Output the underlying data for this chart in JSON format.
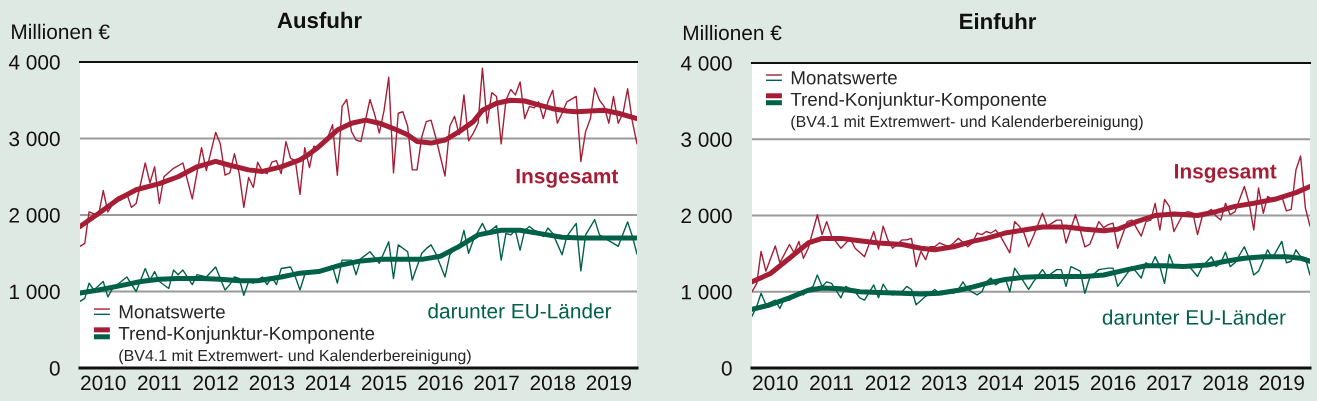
{
  "chart_data": [
    {
      "type": "line",
      "title": "Ausfuhr",
      "ylabel": "Millionen €",
      "xlim": [
        "2010-01",
        "2019-12"
      ],
      "ylim": [
        0,
        4000
      ],
      "yticks": [
        0,
        {
          "value": 1000,
          "label": "1 000"
        },
        {
          "value": 2000,
          "label": "2 000"
        },
        {
          "value": 3000,
          "label": "3 000"
        },
        {
          "value": 4000,
          "label": "4 000"
        }
      ],
      "xticks": [
        {
          "value": "2010-06",
          "label": "2010"
        },
        {
          "value": "2011-06",
          "label": "2011"
        },
        {
          "value": "2012-06",
          "label": "2012"
        },
        {
          "value": "2013-06",
          "label": "2013"
        },
        {
          "value": "2014-06",
          "label": "2014"
        },
        {
          "value": "2015-06",
          "label": "2015"
        },
        {
          "value": "2016-06",
          "label": "2016"
        },
        {
          "value": "2017-06",
          "label": "2017"
        },
        {
          "value": "2018-06",
          "label": "2018"
        },
        {
          "value": "2019-06",
          "label": "2019"
        }
      ],
      "grid": "y",
      "legend": "bottom left",
      "series": [
        {
          "name": "Monatswerte",
          "color": "#a51e36",
          "x": [
            "2010-01",
            "2010-02",
            "2010-03",
            "2010-05",
            "2010-06",
            "2010-07",
            "2010-09",
            "2010-11",
            "2010-12",
            "2011-01",
            "2011-03",
            "2011-04",
            "2011-05",
            "2011-06",
            "2011-07",
            "2011-09",
            "2011-11",
            "2012-01",
            "2012-03",
            "2012-04",
            "2012-06",
            "2012-07",
            "2012-08",
            "2012-09",
            "2012-10",
            "2012-11",
            "2012-12",
            "2013-01",
            "2013-02",
            "2013-03",
            "2013-04",
            "2013-05",
            "2013-06",
            "2013-07",
            "2013-08",
            "2013-09",
            "2013-10",
            "2013-11",
            "2013-12",
            "2014-01",
            "2014-02",
            "2014-03",
            "2014-04",
            "2014-05",
            "2014-06",
            "2014-07",
            "2014-08",
            "2014-09",
            "2014-10",
            "2014-11",
            "2014-12",
            "2015-01",
            "2015-03",
            "2015-04",
            "2015-05",
            "2015-06",
            "2015-07",
            "2015-08",
            "2015-09",
            "2015-10",
            "2015-11",
            "2015-12",
            "2016-01",
            "2016-02",
            "2016-03",
            "2016-04",
            "2016-05",
            "2016-07",
            "2016-08",
            "2016-09",
            "2016-10",
            "2016-11",
            "2016-12",
            "2017-01",
            "2017-02",
            "2017-03",
            "2017-04",
            "2017-05",
            "2017-06",
            "2017-07",
            "2017-08",
            "2017-09",
            "2017-10",
            "2017-11",
            "2017-12",
            "2018-01",
            "2018-02",
            "2018-03",
            "2018-04",
            "2018-05",
            "2018-06",
            "2018-07",
            "2018-08",
            "2018-09",
            "2018-11",
            "2018-12",
            "2019-01",
            "2019-02",
            "2019-03",
            "2019-04",
            "2019-05",
            "2019-06",
            "2019-07",
            "2019-08",
            "2019-09",
            "2019-10",
            "2019-11",
            "2019-12"
          ],
          "values": [
            1590,
            1630,
            2040,
            1990,
            2320,
            2040,
            2230,
            2280,
            2100,
            2150,
            2680,
            2420,
            2630,
            2150,
            2500,
            2610,
            2680,
            2210,
            2880,
            2580,
            3080,
            2930,
            2520,
            2550,
            2800,
            2540,
            2100,
            2490,
            2360,
            2690,
            2570,
            2540,
            2690,
            2710,
            2540,
            2960,
            2740,
            2710,
            2270,
            2880,
            2620,
            2900,
            2880,
            2970,
            3020,
            3180,
            2520,
            3420,
            3510,
            3090,
            2980,
            2960,
            3510,
            3310,
            3070,
            3370,
            3800,
            2550,
            3330,
            3350,
            3160,
            2590,
            2590,
            3020,
            3220,
            3240,
            3020,
            2510,
            3160,
            3290,
            3050,
            3570,
            2970,
            3070,
            3200,
            3920,
            3200,
            3600,
            3550,
            2930,
            3500,
            3640,
            3570,
            3740,
            3260,
            3420,
            3400,
            3480,
            3260,
            3480,
            3630,
            3200,
            3330,
            3480,
            3550,
            2700,
            3090,
            3260,
            3660,
            3500,
            3420,
            3200,
            3550,
            3200,
            3330,
            3650,
            3220,
            2930
          ]
        },
        {
          "color": "#006048",
          "x": [
            "2010-01",
            "2010-02",
            "2010-03",
            "2010-04",
            "2010-06",
            "2010-07",
            "2010-08",
            "2010-11",
            "2011-01",
            "2011-03",
            "2011-04",
            "2011-05",
            "2011-06",
            "2011-08",
            "2011-09",
            "2011-10",
            "2011-11",
            "2012-01",
            "2012-02",
            "2012-04",
            "2012-06",
            "2012-07",
            "2012-08",
            "2012-09",
            "2012-10",
            "2012-11",
            "2012-12",
            "2013-01",
            "2013-02",
            "2013-03",
            "2013-04",
            "2013-05",
            "2013-06",
            "2013-07",
            "2013-08",
            "2013-10",
            "2013-11",
            "2013-12",
            "2014-01",
            "2014-02",
            "2014-03",
            "2014-04",
            "2014-05",
            "2014-07",
            "2014-08",
            "2014-09",
            "2014-11",
            "2014-12",
            "2015-01",
            "2015-03",
            "2015-05",
            "2015-07",
            "2015-08",
            "2015-09",
            "2015-11",
            "2015-12",
            "2016-02",
            "2016-03",
            "2016-04",
            "2016-05",
            "2016-07",
            "2016-08",
            "2016-09",
            "2016-10",
            "2016-11",
            "2016-12",
            "2017-01",
            "2017-03",
            "2017-04",
            "2017-06",
            "2017-07",
            "2017-08",
            "2017-09",
            "2017-10",
            "2017-11",
            "2017-12",
            "2018-01",
            "2018-02",
            "2018-03",
            "2018-04",
            "2018-05",
            "2018-06",
            "2018-08",
            "2018-09",
            "2018-11",
            "2018-12",
            "2019-01",
            "2019-03",
            "2019-04",
            "2019-05",
            "2019-07",
            "2019-08",
            "2019-10",
            "2019-11",
            "2019-12"
          ],
          "values": [
            870,
            910,
            1110,
            1020,
            1130,
            930,
            1040,
            1190,
            1000,
            1300,
            1150,
            1260,
            1130,
            1040,
            1280,
            1220,
            1280,
            1090,
            1220,
            1190,
            1320,
            1170,
            1020,
            1090,
            1190,
            1170,
            950,
            1130,
            1110,
            1150,
            1190,
            1090,
            1190,
            1090,
            1300,
            1320,
            1190,
            1020,
            1220,
            1240,
            1260,
            1260,
            1280,
            1330,
            1110,
            1410,
            1410,
            1220,
            1430,
            1520,
            1370,
            1650,
            1170,
            1610,
            1520,
            1150,
            1500,
            1560,
            1610,
            1500,
            1190,
            1480,
            1560,
            1560,
            1800,
            1500,
            1670,
            1890,
            1760,
            1860,
            1410,
            1760,
            1740,
            1800,
            1540,
            1800,
            1850,
            1800,
            1780,
            1720,
            1830,
            1760,
            1480,
            1720,
            1890,
            1270,
            1740,
            1940,
            1740,
            1700,
            1630,
            1590,
            1910,
            1720,
            1490
          ]
        },
        {
          "name": "Trend-Konjunktur-Komponente",
          "color": "#a51e36",
          "x": [
            "2010-01",
            "2010-05",
            "2010-09",
            "2011-01",
            "2011-06",
            "2011-10",
            "2012-02",
            "2012-06",
            "2012-09",
            "2013-01",
            "2013-04",
            "2013-08",
            "2013-12",
            "2014-02",
            "2014-04",
            "2014-08",
            "2014-11",
            "2015-02",
            "2015-05",
            "2015-08",
            "2015-11",
            "2016-01",
            "2016-04",
            "2016-07",
            "2016-10",
            "2017-01",
            "2017-03",
            "2017-06",
            "2017-09",
            "2017-12",
            "2018-03",
            "2018-06",
            "2018-09",
            "2018-11",
            "2019-02",
            "2019-05",
            "2019-08",
            "2019-12"
          ],
          "values": [
            1850,
            2020,
            2200,
            2330,
            2410,
            2500,
            2630,
            2700,
            2650,
            2590,
            2570,
            2630,
            2720,
            2800,
            2890,
            3110,
            3200,
            3240,
            3200,
            3130,
            3050,
            2960,
            2940,
            2980,
            3090,
            3220,
            3370,
            3460,
            3500,
            3490,
            3440,
            3390,
            3360,
            3350,
            3360,
            3370,
            3330,
            3260
          ]
        },
        {
          "color": "#006048",
          "x": [
            "2010-01",
            "2010-05",
            "2010-10",
            "2011-02",
            "2011-06",
            "2011-10",
            "2012-03",
            "2012-07",
            "2012-11",
            "2013-03",
            "2013-08",
            "2013-12",
            "2014-04",
            "2014-09",
            "2015-01",
            "2015-05",
            "2015-09",
            "2016-02",
            "2016-06",
            "2016-10",
            "2017-02",
            "2017-07",
            "2017-11",
            "2018-03",
            "2018-08",
            "2018-12",
            "2019-04",
            "2019-08",
            "2019-12"
          ],
          "values": [
            980,
            1020,
            1080,
            1130,
            1160,
            1170,
            1170,
            1160,
            1140,
            1140,
            1190,
            1240,
            1260,
            1350,
            1400,
            1420,
            1420,
            1420,
            1460,
            1590,
            1740,
            1800,
            1800,
            1760,
            1710,
            1700,
            1700,
            1700,
            1700
          ]
        }
      ],
      "annotations": [
        "Insgesamt",
        "darunter EU-Länder",
        "(BV4.1 mit Extremwert- und Kalenderbereinigung)"
      ]
    },
    {
      "type": "line",
      "title": "Einfuhr",
      "ylabel": "Millionen €",
      "xlim": [
        "2010-01",
        "2019-12"
      ],
      "ylim": [
        0,
        4000
      ],
      "yticks": [
        0,
        {
          "value": 1000,
          "label": "1 000"
        },
        {
          "value": 2000,
          "label": "2 000"
        },
        {
          "value": 3000,
          "label": "3 000"
        },
        {
          "value": 4000,
          "label": "4 000"
        }
      ],
      "xticks": [
        {
          "value": "2010-06",
          "label": "2010"
        },
        {
          "value": "2011-06",
          "label": "2011"
        },
        {
          "value": "2012-06",
          "label": "2012"
        },
        {
          "value": "2013-06",
          "label": "2013"
        },
        {
          "value": "2014-06",
          "label": "2014"
        },
        {
          "value": "2015-06",
          "label": "2015"
        },
        {
          "value": "2016-06",
          "label": "2016"
        },
        {
          "value": "2017-06",
          "label": "2017"
        },
        {
          "value": "2018-06",
          "label": "2018"
        },
        {
          "value": "2019-06",
          "label": "2019"
        }
      ],
      "grid": "y",
      "legend": "top left",
      "series": [
        {
          "name": "Monatswerte",
          "color": "#a51e36",
          "x": [
            "2010-01",
            "2010-02",
            "2010-03",
            "2010-04",
            "2010-06",
            "2010-07",
            "2010-09",
            "2010-10",
            "2010-11",
            "2010-12",
            "2011-01",
            "2011-03",
            "2011-04",
            "2011-05",
            "2011-06",
            "2011-08",
            "2011-10",
            "2011-11",
            "2012-01",
            "2012-03",
            "2012-04",
            "2012-05",
            "2012-06",
            "2012-07",
            "2012-09",
            "2012-10",
            "2012-11",
            "2012-12",
            "2013-01",
            "2013-02",
            "2013-03",
            "2013-04",
            "2013-05",
            "2013-07",
            "2013-08",
            "2013-09",
            "2013-11",
            "2013-12",
            "2014-01",
            "2014-02",
            "2014-03",
            "2014-04",
            "2014-05",
            "2014-06",
            "2014-08",
            "2014-09",
            "2014-10",
            "2014-11",
            "2014-12",
            "2015-01",
            "2015-03",
            "2015-04",
            "2015-06",
            "2015-07",
            "2015-08",
            "2015-10",
            "2015-11",
            "2015-12",
            "2016-01",
            "2016-03",
            "2016-04",
            "2016-05",
            "2016-06",
            "2016-07",
            "2016-09",
            "2016-10",
            "2016-12",
            "2017-01",
            "2017-02",
            "2017-03",
            "2017-04",
            "2017-05",
            "2017-06",
            "2017-07",
            "2017-09",
            "2017-10",
            "2017-11",
            "2017-12",
            "2018-01",
            "2018-03",
            "2018-04",
            "2018-05",
            "2018-06",
            "2018-07",
            "2018-08",
            "2018-10",
            "2018-11",
            "2018-12",
            "2019-01",
            "2019-02",
            "2019-03",
            "2019-04",
            "2019-06",
            "2019-07",
            "2019-08",
            "2019-09",
            "2019-10",
            "2019-11",
            "2019-12"
          ],
          "values": [
            1000,
            1110,
            1530,
            1270,
            1600,
            1380,
            1620,
            1510,
            1660,
            1440,
            1570,
            2010,
            1750,
            1920,
            1730,
            1570,
            1700,
            1570,
            1460,
            1790,
            1560,
            1860,
            1680,
            1570,
            1680,
            1680,
            1700,
            1330,
            1530,
            1420,
            1590,
            1590,
            1640,
            1590,
            1640,
            1700,
            1590,
            1640,
            1770,
            1750,
            1790,
            1770,
            1810,
            1730,
            1510,
            1920,
            1860,
            1770,
            1590,
            1730,
            2030,
            1860,
            1940,
            1940,
            1640,
            2010,
            1810,
            1590,
            1620,
            1920,
            1840,
            1880,
            1900,
            1570,
            1920,
            1940,
            1730,
            1920,
            1940,
            2160,
            1810,
            2210,
            2120,
            1790,
            2030,
            2050,
            2030,
            1750,
            1990,
            2080,
            1990,
            1940,
            2160,
            2010,
            2050,
            2380,
            2160,
            1810,
            2360,
            2030,
            2250,
            2210,
            2250,
            2060,
            2080,
            2600,
            2780,
            2100,
            1860
          ]
        },
        {
          "color": "#006048",
          "x": [
            "2010-01",
            "2010-02",
            "2010-03",
            "2010-04",
            "2010-06",
            "2010-07",
            "2010-08",
            "2010-09",
            "2010-11",
            "2010-12",
            "2011-01",
            "2011-02",
            "2011-03",
            "2011-04",
            "2011-05",
            "2011-06",
            "2011-08",
            "2011-09",
            "2011-11",
            "2011-12",
            "2012-01",
            "2012-03",
            "2012-04",
            "2012-05",
            "2012-06",
            "2012-07",
            "2012-09",
            "2012-10",
            "2012-11",
            "2012-12",
            "2013-02",
            "2013-03",
            "2013-04",
            "2013-05",
            "2013-07",
            "2013-08",
            "2013-09",
            "2013-10",
            "2013-11",
            "2014-01",
            "2014-02",
            "2014-03",
            "2014-04",
            "2014-05",
            "2014-07",
            "2014-08",
            "2014-09",
            "2014-10",
            "2014-12",
            "2015-01",
            "2015-03",
            "2015-04",
            "2015-06",
            "2015-07",
            "2015-08",
            "2015-09",
            "2015-11",
            "2015-12",
            "2016-01",
            "2016-03",
            "2016-05",
            "2016-06",
            "2016-07",
            "2016-09",
            "2016-10",
            "2016-12",
            "2017-01",
            "2017-02",
            "2017-03",
            "2017-04",
            "2017-05",
            "2017-06",
            "2017-07",
            "2017-09",
            "2017-10",
            "2017-12",
            "2018-01",
            "2018-03",
            "2018-04",
            "2018-05",
            "2018-06",
            "2018-07",
            "2018-08",
            "2018-10",
            "2018-11",
            "2018-12",
            "2019-01",
            "2019-03",
            "2019-04",
            "2019-06",
            "2019-07",
            "2019-08",
            "2019-09",
            "2019-10",
            "2019-11",
            "2019-12"
          ],
          "values": [
            680,
            810,
            980,
            830,
            890,
            780,
            920,
            890,
            1000,
            960,
            1030,
            1070,
            1220,
            1070,
            1130,
            1110,
            920,
            1070,
            1000,
            920,
            890,
            1090,
            920,
            1100,
            1000,
            960,
            1000,
            1070,
            1030,
            830,
            940,
            980,
            1030,
            980,
            1000,
            980,
            1030,
            1130,
            1030,
            960,
            1000,
            1130,
            1180,
            1090,
            1180,
            1000,
            1310,
            1220,
            1030,
            1130,
            1290,
            1200,
            1290,
            1290,
            1070,
            1330,
            1270,
            980,
            1180,
            1290,
            1310,
            1310,
            1070,
            1240,
            1330,
            1180,
            1380,
            1330,
            1460,
            1330,
            1110,
            1490,
            1330,
            1350,
            1350,
            1200,
            1330,
            1460,
            1330,
            1380,
            1520,
            1330,
            1380,
            1590,
            1440,
            1220,
            1270,
            1550,
            1440,
            1660,
            1380,
            1400,
            1550,
            1460,
            1440,
            1220
          ]
        },
        {
          "name": "Trend-Konjunktur-Komponente",
          "color": "#a51e36",
          "x": [
            "2010-01",
            "2010-05",
            "2010-09",
            "2011-01",
            "2011-04",
            "2011-08",
            "2011-12",
            "2012-04",
            "2012-09",
            "2013-01",
            "2013-04",
            "2013-08",
            "2013-12",
            "2014-03",
            "2014-07",
            "2014-11",
            "2015-03",
            "2015-08",
            "2015-12",
            "2016-04",
            "2016-07",
            "2016-11",
            "2017-03",
            "2017-07",
            "2017-12",
            "2018-04",
            "2018-08",
            "2018-12",
            "2019-05",
            "2019-09",
            "2019-12"
          ],
          "values": [
            1130,
            1240,
            1440,
            1640,
            1700,
            1700,
            1670,
            1640,
            1620,
            1570,
            1550,
            1590,
            1660,
            1700,
            1770,
            1810,
            1850,
            1850,
            1820,
            1800,
            1820,
            1920,
            2000,
            2020,
            2000,
            2050,
            2120,
            2160,
            2220,
            2300,
            2380
          ]
        },
        {
          "color": "#006048",
          "x": [
            "2010-01",
            "2010-05",
            "2010-09",
            "2011-01",
            "2011-04",
            "2011-08",
            "2011-12",
            "2012-04",
            "2012-09",
            "2013-01",
            "2013-05",
            "2013-09",
            "2013-12",
            "2014-03",
            "2014-07",
            "2014-11",
            "2015-03",
            "2015-08",
            "2015-12",
            "2016-04",
            "2016-09",
            "2017-01",
            "2017-05",
            "2017-09",
            "2018-02",
            "2018-06",
            "2018-10",
            "2019-02",
            "2019-07",
            "2019-10",
            "2019-12"
          ],
          "values": [
            770,
            830,
            920,
            1020,
            1050,
            1040,
            1000,
            990,
            980,
            970,
            980,
            1020,
            1060,
            1110,
            1160,
            1190,
            1200,
            1200,
            1200,
            1220,
            1290,
            1340,
            1340,
            1330,
            1350,
            1400,
            1440,
            1460,
            1460,
            1440,
            1400
          ]
        }
      ],
      "annotations": [
        "Insgesamt",
        "darunter EU-Länder",
        "(BV4.1 mit Extremwert- und Kalenderbereinigung)"
      ]
    }
  ]
}
